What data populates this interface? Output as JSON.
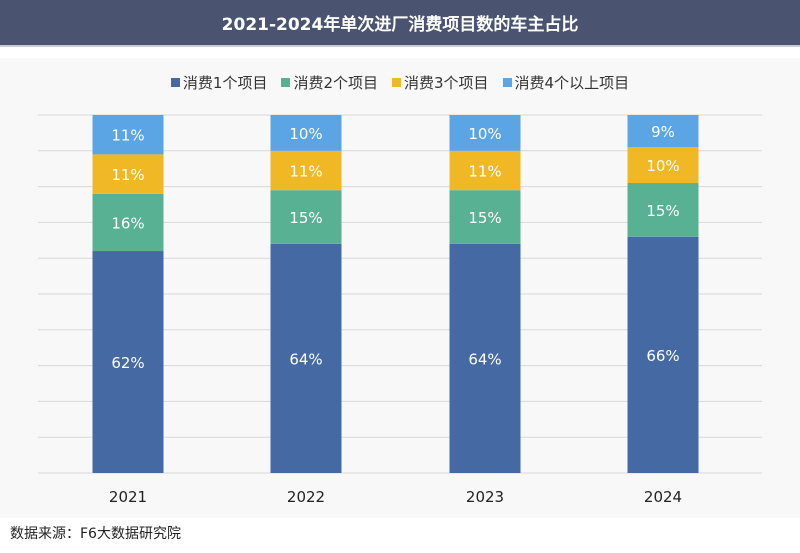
{
  "chart_data": {
    "type": "bar",
    "stacked": true,
    "title": "2021-2024年单次进厂消费项目数的车主占比",
    "categories": [
      "2021",
      "2022",
      "2023",
      "2024"
    ],
    "series": [
      {
        "name": "消费1个项目",
        "color": "#4569a3",
        "values": [
          62,
          64,
          64,
          66
        ]
      },
      {
        "name": "消费2个项目",
        "color": "#58b193",
        "values": [
          16,
          15,
          15,
          15
        ]
      },
      {
        "name": "消费3个项目",
        "color": "#f0b824",
        "values": [
          11,
          11,
          11,
          10
        ]
      },
      {
        "name": "消费4个以上项目",
        "color": "#5ca5e5",
        "values": [
          11,
          10,
          10,
          9
        ]
      }
    ],
    "value_suffix": "%",
    "ylim": [
      0,
      100
    ],
    "grid": true,
    "legend": "top-center",
    "xlabel": "",
    "ylabel": ""
  },
  "source": "数据来源：F6大数据研究院",
  "watermark": "F6大数据研究院"
}
